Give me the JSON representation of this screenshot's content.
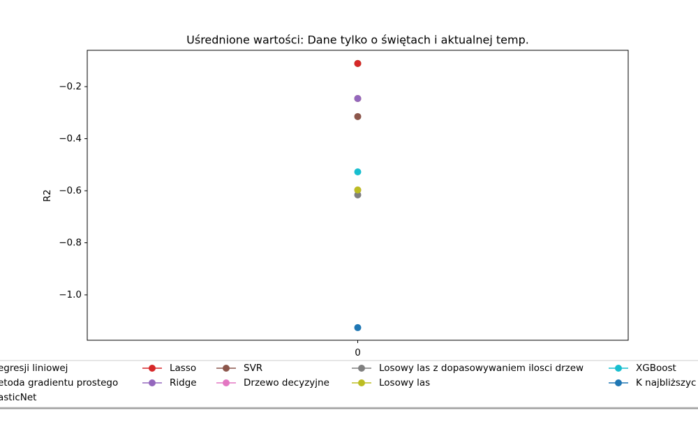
{
  "chart_data": {
    "type": "line",
    "title": "Uśrednione wartości: Dane tylko o świętach i aktualnej temp.",
    "y_label": "R2",
    "x": [
      0
    ],
    "xlim": [
      -0.055,
      0.055
    ],
    "xticks": [
      0
    ],
    "ylim": [
      -1.1745,
      -0.0604
    ],
    "yticks": [
      {
        "value": -0.2,
        "label": "−0.2"
      },
      {
        "value": -0.4,
        "label": "−0.4"
      },
      {
        "value": -0.6,
        "label": "−0.6"
      },
      {
        "value": -0.8,
        "label": "−0.8"
      },
      {
        "value": -1.0,
        "label": "−1.0"
      }
    ],
    "grid": false,
    "legend": "bottom",
    "series": [
      {
        "name": "egresji liniowej",
        "color": "#1f77b4",
        "values": [
          -0.2456
        ]
      },
      {
        "name": "etoda gradientu prostego",
        "color": "#ff7f0e",
        "values": [
          -0.2456
        ]
      },
      {
        "name": "asticNet",
        "color": "#2ca02c",
        "values": [
          -0.111
        ]
      },
      {
        "name": "Lasso",
        "color": "#d62728",
        "values": [
          -0.111
        ]
      },
      {
        "name": "Ridge",
        "color": "#9467bd",
        "values": [
          -0.2456
        ]
      },
      {
        "name": "SVR",
        "color": "#8c564b",
        "values": [
          -0.315
        ]
      },
      {
        "name": "Drzewo decyzyjne",
        "color": "#e377c2",
        "values": [
          -0.597
        ]
      },
      {
        "name": "Losowy las z dopasowywaniem ilosci drzew",
        "color": "#7f7f7f",
        "values": [
          -0.616
        ]
      },
      {
        "name": "Losowy las",
        "color": "#bcbd22",
        "values": [
          -0.597
        ]
      },
      {
        "name": "XGBoost",
        "color": "#17becf",
        "values": [
          -0.5275
        ]
      },
      {
        "name": "K najbliższyc",
        "color": "#1f77b4",
        "values": [
          -1.126
        ]
      }
    ]
  }
}
